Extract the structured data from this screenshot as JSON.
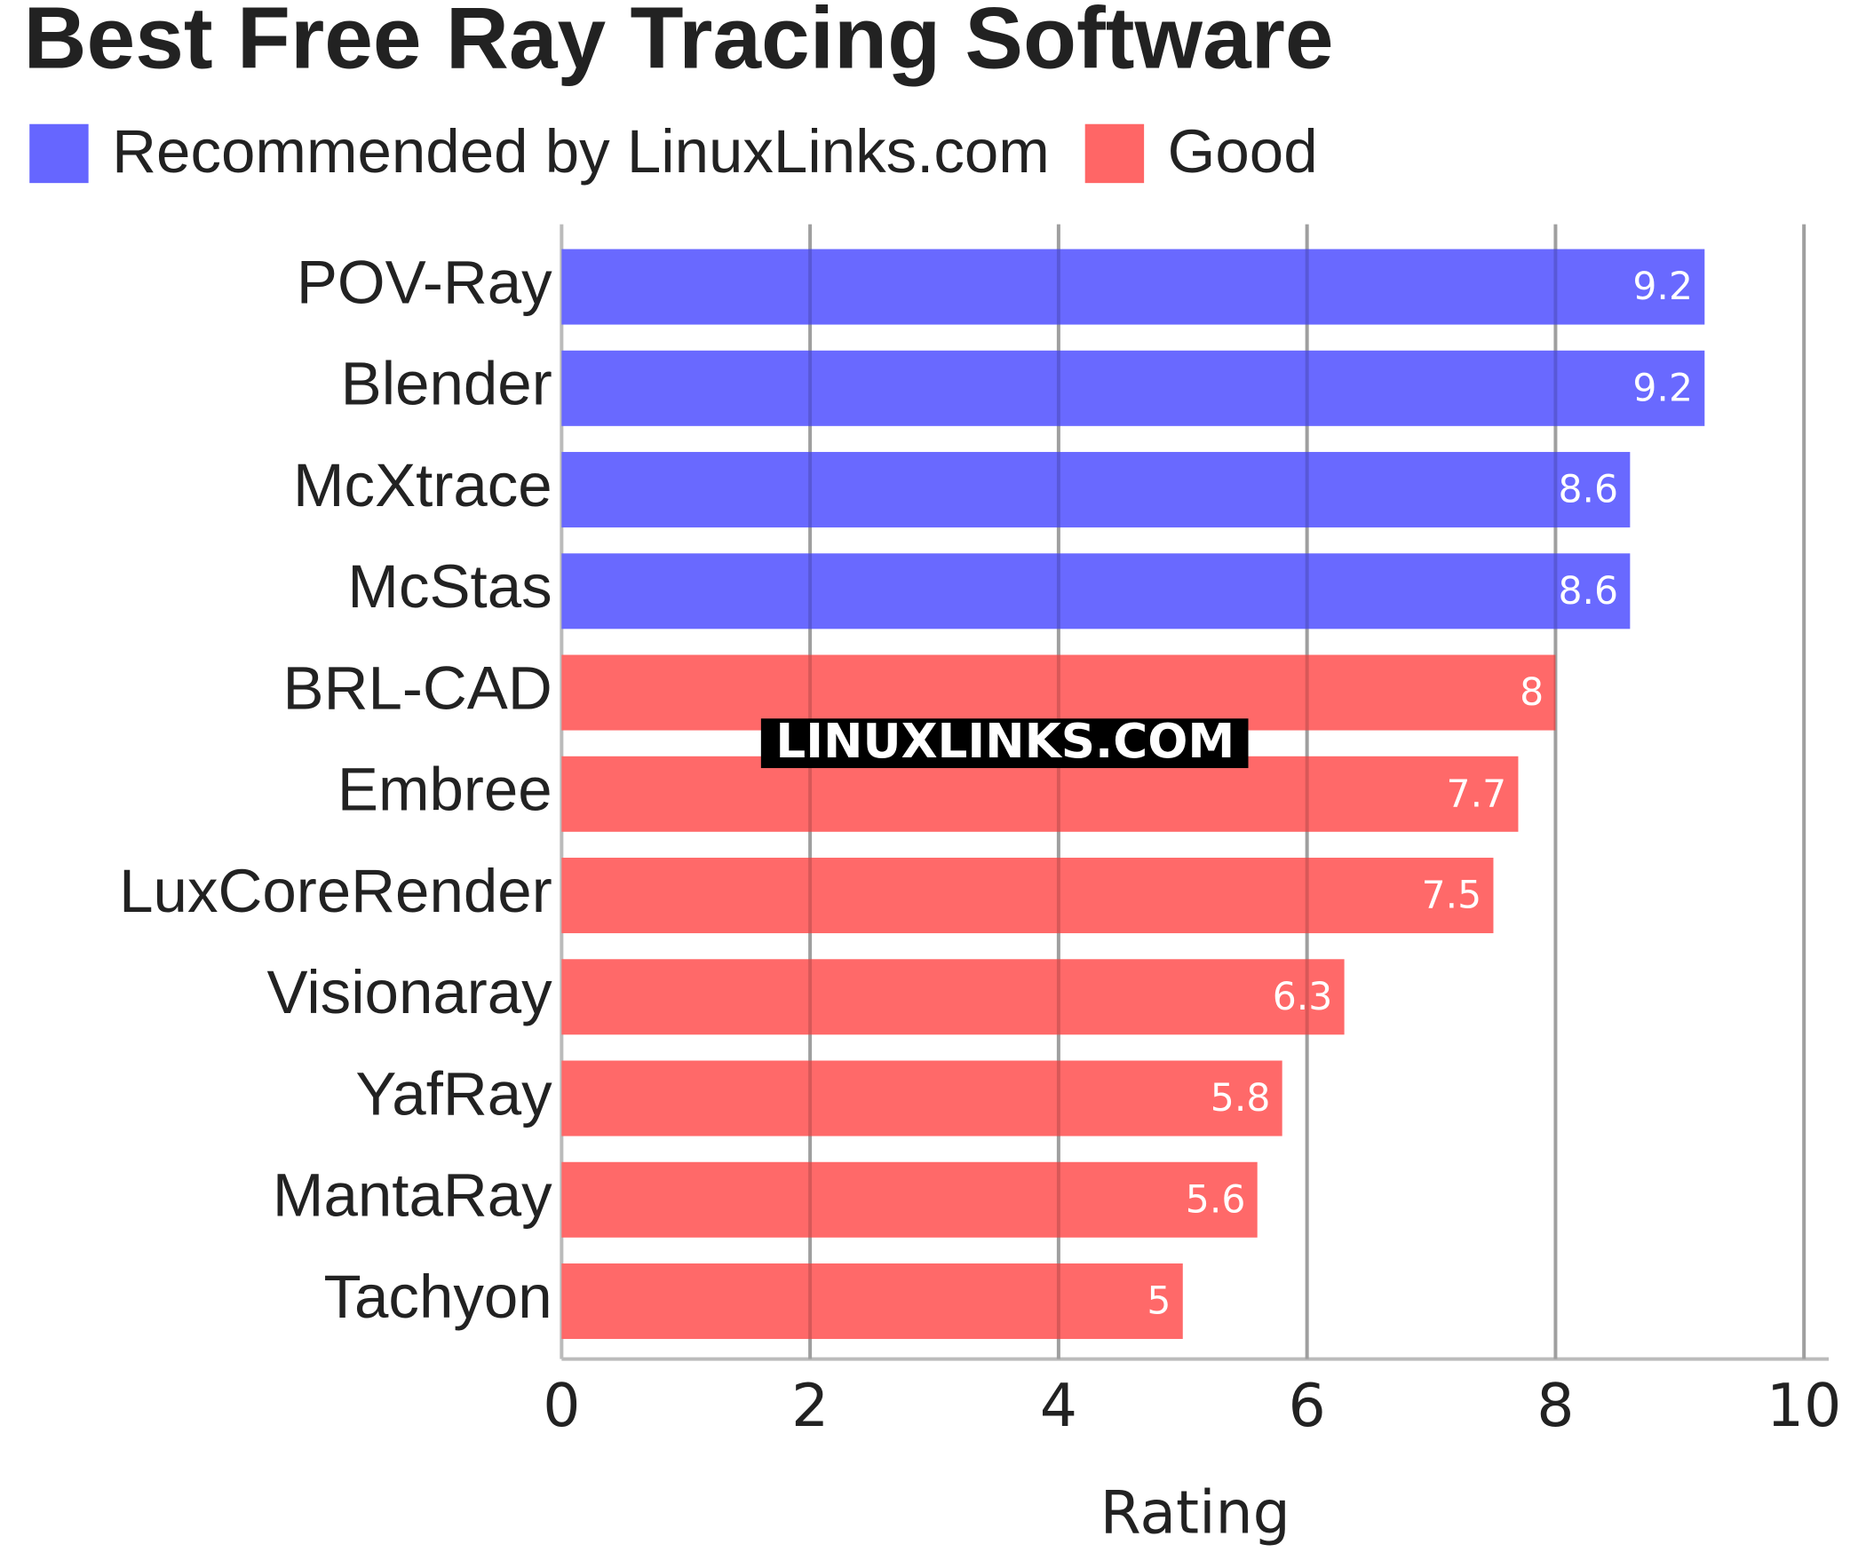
{
  "chart_data": {
    "type": "bar",
    "orientation": "horizontal",
    "title": "Best Free Ray Tracing Software",
    "xlabel": "Rating",
    "watermark": "LINUXLINKS.COM",
    "categories": [
      "POV-Ray",
      "Blender",
      "McXtrace",
      "McStas",
      "BRL-CAD",
      "Embree",
      "LuxCoreRender",
      "Visionaray",
      "YafRay",
      "MantaRay",
      "Tachyon"
    ],
    "series": [
      {
        "name": "Recommended by LinuxLinks.com",
        "color": "#6666ff",
        "values": [
          9.2,
          9.2,
          8.6,
          8.6,
          null,
          null,
          null,
          null,
          null,
          null,
          null
        ]
      },
      {
        "name": "Good",
        "color": "#ff6666",
        "values": [
          null,
          null,
          null,
          null,
          8,
          7.7,
          7.5,
          6.3,
          5.8,
          5.6,
          5
        ]
      }
    ],
    "xlim": [
      0,
      10
    ],
    "xticks": [
      0,
      2,
      4,
      6,
      8,
      10
    ],
    "grid": true
  }
}
